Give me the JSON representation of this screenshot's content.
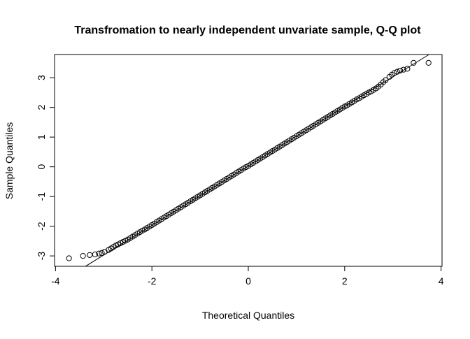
{
  "chart_data": {
    "type": "scatter",
    "title": "Transfromation to nearly independent unvariate sample, Q-Q plot",
    "xlabel": "Theoretical Quantiles",
    "ylabel": "Sample Quantiles",
    "xlim": [
      -4.02,
      4.02
    ],
    "ylim": [
      -3.35,
      3.78
    ],
    "xticks": [
      -4,
      -2,
      0,
      2,
      4
    ],
    "yticks": [
      -3,
      -2,
      -1,
      0,
      1,
      2,
      3
    ],
    "grid": false,
    "marker": "open-circle",
    "reference_line": {
      "intercept": 0.03,
      "slope": 1.0
    },
    "points": [
      [
        -3.72,
        -3.08
      ],
      [
        -3.43,
        -3.0
      ],
      [
        -3.29,
        -2.97
      ],
      [
        -3.18,
        -2.95
      ],
      [
        -3.1,
        -2.92
      ],
      [
        -3.04,
        -2.9
      ],
      [
        -2.98,
        -2.86
      ],
      [
        -2.9,
        -2.8
      ],
      [
        -2.85,
        -2.75
      ],
      [
        -2.8,
        -2.7
      ],
      [
        -2.75,
        -2.65
      ],
      [
        -2.7,
        -2.61
      ],
      [
        -2.65,
        -2.57
      ],
      [
        -2.6,
        -2.53
      ],
      [
        -2.55,
        -2.49
      ],
      [
        -2.5,
        -2.45
      ],
      [
        -2.45,
        -2.4
      ],
      [
        -2.4,
        -2.35
      ],
      [
        -2.35,
        -2.3
      ],
      [
        -2.3,
        -2.25
      ],
      [
        -2.25,
        -2.2
      ],
      [
        -2.2,
        -2.15
      ],
      [
        -2.15,
        -2.11
      ],
      [
        -2.1,
        -2.06
      ],
      [
        -2.05,
        -2.01
      ],
      [
        -2.0,
        -1.96
      ],
      [
        -1.95,
        -1.91
      ],
      [
        -1.9,
        -1.86
      ],
      [
        -1.85,
        -1.81
      ],
      [
        -1.8,
        -1.76
      ],
      [
        -1.75,
        -1.71
      ],
      [
        -1.7,
        -1.66
      ],
      [
        -1.65,
        -1.61
      ],
      [
        -1.6,
        -1.56
      ],
      [
        -1.55,
        -1.51
      ],
      [
        -1.5,
        -1.46
      ],
      [
        -1.45,
        -1.41
      ],
      [
        -1.4,
        -1.36
      ],
      [
        -1.35,
        -1.31
      ],
      [
        -1.3,
        -1.26
      ],
      [
        -1.25,
        -1.21
      ],
      [
        -1.2,
        -1.16
      ],
      [
        -1.15,
        -1.11
      ],
      [
        -1.1,
        -1.06
      ],
      [
        -1.05,
        -1.01
      ],
      [
        -1.0,
        -0.96
      ],
      [
        -0.95,
        -0.91
      ],
      [
        -0.9,
        -0.86
      ],
      [
        -0.85,
        -0.81
      ],
      [
        -0.8,
        -0.76
      ],
      [
        -0.75,
        -0.71
      ],
      [
        -0.7,
        -0.66
      ],
      [
        -0.65,
        -0.61
      ],
      [
        -0.6,
        -0.56
      ],
      [
        -0.55,
        -0.51
      ],
      [
        -0.5,
        -0.46
      ],
      [
        -0.45,
        -0.41
      ],
      [
        -0.4,
        -0.36
      ],
      [
        -0.35,
        -0.31
      ],
      [
        -0.3,
        -0.26
      ],
      [
        -0.25,
        -0.21
      ],
      [
        -0.2,
        -0.16
      ],
      [
        -0.15,
        -0.11
      ],
      [
        -0.1,
        -0.06
      ],
      [
        -0.05,
        -0.01
      ],
      [
        0.0,
        0.03
      ],
      [
        0.05,
        0.08
      ],
      [
        0.1,
        0.13
      ],
      [
        0.15,
        0.18
      ],
      [
        0.2,
        0.23
      ],
      [
        0.25,
        0.28
      ],
      [
        0.3,
        0.33
      ],
      [
        0.35,
        0.38
      ],
      [
        0.4,
        0.43
      ],
      [
        0.45,
        0.48
      ],
      [
        0.5,
        0.53
      ],
      [
        0.55,
        0.58
      ],
      [
        0.6,
        0.63
      ],
      [
        0.65,
        0.68
      ],
      [
        0.7,
        0.73
      ],
      [
        0.75,
        0.78
      ],
      [
        0.8,
        0.83
      ],
      [
        0.85,
        0.88
      ],
      [
        0.9,
        0.93
      ],
      [
        0.95,
        0.98
      ],
      [
        1.0,
        1.03
      ],
      [
        1.05,
        1.08
      ],
      [
        1.1,
        1.13
      ],
      [
        1.15,
        1.18
      ],
      [
        1.2,
        1.23
      ],
      [
        1.25,
        1.28
      ],
      [
        1.3,
        1.33
      ],
      [
        1.35,
        1.38
      ],
      [
        1.4,
        1.43
      ],
      [
        1.45,
        1.48
      ],
      [
        1.5,
        1.53
      ],
      [
        1.55,
        1.58
      ],
      [
        1.6,
        1.63
      ],
      [
        1.65,
        1.68
      ],
      [
        1.7,
        1.73
      ],
      [
        1.75,
        1.78
      ],
      [
        1.8,
        1.83
      ],
      [
        1.85,
        1.88
      ],
      [
        1.9,
        1.93
      ],
      [
        1.95,
        1.98
      ],
      [
        2.0,
        2.03
      ],
      [
        2.05,
        2.07
      ],
      [
        2.1,
        2.12
      ],
      [
        2.15,
        2.17
      ],
      [
        2.2,
        2.22
      ],
      [
        2.25,
        2.27
      ],
      [
        2.3,
        2.31
      ],
      [
        2.35,
        2.36
      ],
      [
        2.4,
        2.41
      ],
      [
        2.45,
        2.45
      ],
      [
        2.5,
        2.5
      ],
      [
        2.55,
        2.54
      ],
      [
        2.6,
        2.59
      ],
      [
        2.65,
        2.64
      ],
      [
        2.7,
        2.7
      ],
      [
        2.75,
        2.77
      ],
      [
        2.8,
        2.85
      ],
      [
        2.85,
        2.92
      ],
      [
        2.93,
        3.03
      ],
      [
        2.98,
        3.1
      ],
      [
        3.03,
        3.16
      ],
      [
        3.09,
        3.2
      ],
      [
        3.15,
        3.24
      ],
      [
        3.22,
        3.27
      ],
      [
        3.3,
        3.3
      ],
      [
        3.43,
        3.5
      ],
      [
        3.74,
        3.5
      ]
    ]
  }
}
